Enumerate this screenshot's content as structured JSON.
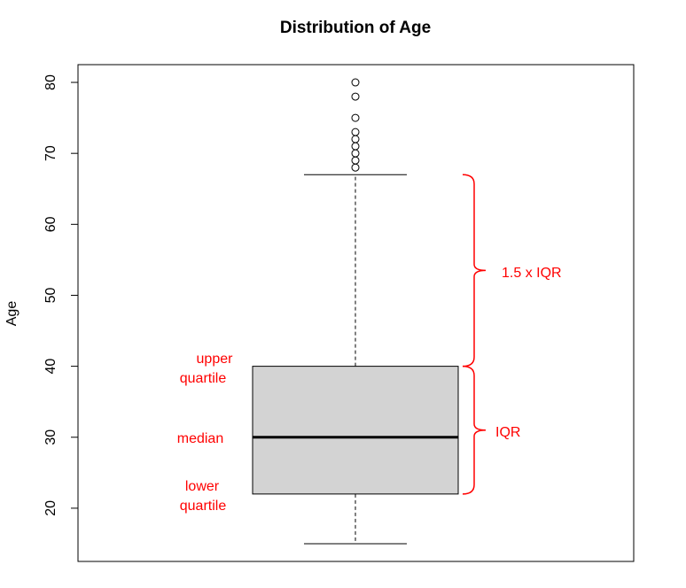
{
  "chart_data": {
    "type": "boxplot",
    "title": "Distribution of Age",
    "xlabel": "",
    "ylabel": "Age",
    "ylim": [
      12.5,
      82.5
    ],
    "yticks": [
      20,
      30,
      40,
      50,
      60,
      70,
      80
    ],
    "ytick_labels": [
      "20",
      "30",
      "40",
      "50",
      "60",
      "70",
      "80"
    ],
    "grid": false,
    "box": {
      "whisker_low": 15,
      "q1": 22,
      "median": 30,
      "q3": 40,
      "whisker_high": 67,
      "outliers": [
        68,
        69,
        70,
        71,
        72,
        73,
        75,
        78,
        80
      ]
    },
    "colors": {
      "box_fill": "#d3d3d3",
      "annotation": "#ff0000",
      "line": "#000000"
    },
    "annotations": {
      "upper_quartile_line1": "upper",
      "upper_quartile_line2": "quartile",
      "median": "median",
      "lower_quartile_line1": "lower",
      "lower_quartile_line2": "quartile",
      "iqr_1_5": "1.5 x IQR",
      "iqr": "IQR"
    }
  }
}
